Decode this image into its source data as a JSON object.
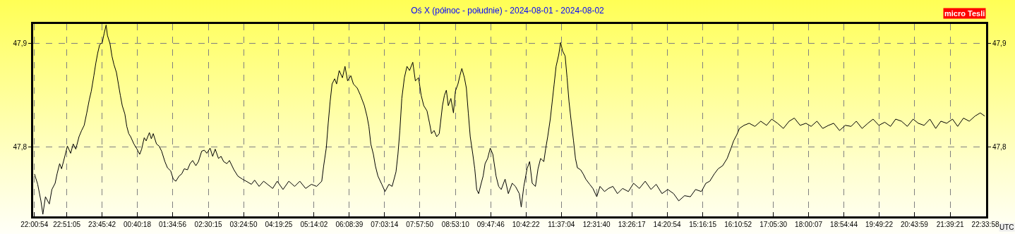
{
  "chart_data": {
    "type": "line",
    "title": "Oś X (północ - południe) - 2024-08-01 - 2024-08-02",
    "xlabel": "UTC",
    "y2label": "micro Tesli",
    "color": "#000000",
    "grid": true,
    "legend": false,
    "marker": "none",
    "line_style": "solid",
    "xlim": [
      "2024-08-01T21:59",
      "2024-08-02T22:35"
    ],
    "ylim": [
      47.733,
      47.919
    ],
    "y2lim": [
      47.733,
      47.919
    ],
    "xticks": [
      {
        "value": "2024-08-01T22:00:54",
        "label": "22:00:54"
      },
      {
        "value": "2024-08-01T22:51:05",
        "label": "22:51:05"
      },
      {
        "value": "2024-08-01T23:45:42",
        "label": "23:45:42"
      },
      {
        "value": "2024-08-02T00:40:18",
        "label": "00:40:18"
      },
      {
        "value": "2024-08-02T01:34:56",
        "label": "01:34:56"
      },
      {
        "value": "2024-08-02T02:30:15",
        "label": "02:30:15"
      },
      {
        "value": "2024-08-02T03:24:50",
        "label": "03:24:50"
      },
      {
        "value": "2024-08-02T04:19:25",
        "label": "04:19:25"
      },
      {
        "value": "2024-08-02T05:14:02",
        "label": "05:14:02"
      },
      {
        "value": "2024-08-02T06:08:39",
        "label": "06:08:39"
      },
      {
        "value": "2024-08-02T07:03:14",
        "label": "07:03:14"
      },
      {
        "value": "2024-08-02T07:57:50",
        "label": "07:57:50"
      },
      {
        "value": "2024-08-02T08:53:10",
        "label": "08:53:10"
      },
      {
        "value": "2024-08-02T09:47:46",
        "label": "09:47:46"
      },
      {
        "value": "2024-08-02T10:42:22",
        "label": "10:42:22"
      },
      {
        "value": "2024-08-02T11:37:04",
        "label": "11:37:04"
      },
      {
        "value": "2024-08-02T12:31:40",
        "label": "12:31:40"
      },
      {
        "value": "2024-08-02T13:26:17",
        "label": "13:26:17"
      },
      {
        "value": "2024-08-02T14:20:54",
        "label": "14:20:54"
      },
      {
        "value": "2024-08-02T15:16:15",
        "label": "15:16:15"
      },
      {
        "value": "2024-08-02T16:10:52",
        "label": "16:10:52"
      },
      {
        "value": "2024-08-02T17:05:30",
        "label": "17:05:30"
      },
      {
        "value": "2024-08-02T18:00:07",
        "label": "18:00:07"
      },
      {
        "value": "2024-08-02T18:54:44",
        "label": "18:54:44"
      },
      {
        "value": "2024-08-02T19:49:22",
        "label": "19:49:22"
      },
      {
        "value": "2024-08-02T20:43:59",
        "label": "20:43:59"
      },
      {
        "value": "2024-08-02T21:39:21",
        "label": "21:39:21"
      },
      {
        "value": "2024-08-02T22:33:58",
        "label": "22:33:58"
      }
    ],
    "yticks": [
      {
        "value": 47.8,
        "label": "47,8"
      },
      {
        "value": 47.9,
        "label": "47,9"
      }
    ],
    "y2ticks": [
      {
        "value": 47.8,
        "label": "47,8"
      },
      {
        "value": 47.9,
        "label": "47,9"
      }
    ],
    "x": [
      "2024-08-01T22:01",
      "2024-08-01T22:06",
      "2024-08-01T22:11",
      "2024-08-01T22:14",
      "2024-08-01T22:18",
      "2024-08-01T22:24",
      "2024-08-01T22:28",
      "2024-08-01T22:33",
      "2024-08-01T22:36",
      "2024-08-01T22:40",
      "2024-08-01T22:43",
      "2024-08-01T22:48",
      "2024-08-01T22:52",
      "2024-08-01T22:57",
      "2024-08-01T23:01",
      "2024-08-01T23:05",
      "2024-08-01T23:10",
      "2024-08-01T23:14",
      "2024-08-01T23:18",
      "2024-08-01T23:22",
      "2024-08-01T23:26",
      "2024-08-01T23:29",
      "2024-08-01T23:33",
      "2024-08-01T23:36",
      "2024-08-01T23:39",
      "2024-08-01T23:42",
      "2024-08-01T23:46",
      "2024-08-01T23:49",
      "2024-08-01T23:52",
      "2024-08-01T23:54",
      "2024-08-01T23:58",
      "2024-08-02T00:01",
      "2024-08-02T00:04",
      "2024-08-02T00:08",
      "2024-08-02T00:11",
      "2024-08-02T00:14",
      "2024-08-02T00:17",
      "2024-08-02T00:21",
      "2024-08-02T00:24",
      "2024-08-02T00:27",
      "2024-08-02T00:30",
      "2024-08-02T00:35",
      "2024-08-02T00:39",
      "2024-08-02T00:44",
      "2024-08-02T00:47",
      "2024-08-02T00:51",
      "2024-08-02T00:54",
      "2024-08-02T00:59",
      "2024-08-02T01:02",
      "2024-08-02T01:05",
      "2024-08-02T01:10",
      "2024-08-02T01:14",
      "2024-08-02T01:18",
      "2024-08-02T01:23",
      "2024-08-02T01:27",
      "2024-08-02T01:32",
      "2024-08-02T01:36",
      "2024-08-02T01:40",
      "2024-08-02T01:45",
      "2024-08-02T01:49",
      "2024-08-02T01:53",
      "2024-08-02T01:58",
      "2024-08-02T02:02",
      "2024-08-02T02:06",
      "2024-08-02T02:11",
      "2024-08-02T02:15",
      "2024-08-02T02:20",
      "2024-08-02T02:24",
      "2024-08-02T02:28",
      "2024-08-02T02:33",
      "2024-08-02T02:37",
      "2024-08-02T02:41",
      "2024-08-02T02:46",
      "2024-08-02T02:50",
      "2024-08-02T02:54",
      "2024-08-02T02:59",
      "2024-08-02T03:03",
      "2024-08-02T03:10",
      "2024-08-02T03:16",
      "2024-08-02T03:23",
      "2024-08-02T03:29",
      "2024-08-02T03:37",
      "2024-08-02T03:42",
      "2024-08-02T03:49",
      "2024-08-02T03:56",
      "2024-08-02T04:02",
      "2024-08-02T04:10",
      "2024-08-02T04:17",
      "2024-08-02T04:26",
      "2024-08-02T04:35",
      "2024-08-02T04:44",
      "2024-08-02T04:52",
      "2024-08-02T05:01",
      "2024-08-02T05:10",
      "2024-08-02T05:18",
      "2024-08-02T05:26",
      "2024-08-02T05:29",
      "2024-08-02T05:33",
      "2024-08-02T05:36",
      "2024-08-02T05:39",
      "2024-08-02T05:42",
      "2024-08-02T05:46",
      "2024-08-02T05:49",
      "2024-08-02T05:53",
      "2024-08-02T05:58",
      "2024-08-02T06:02",
      "2024-08-02T06:06",
      "2024-08-02T06:11",
      "2024-08-02T06:15",
      "2024-08-02T06:21",
      "2024-08-02T06:26",
      "2024-08-02T06:32",
      "2024-08-02T06:36",
      "2024-08-02T06:39",
      "2024-08-02T06:42",
      "2024-08-02T06:46",
      "2024-08-02T06:49",
      "2024-08-02T06:53",
      "2024-08-02T06:59",
      "2024-08-02T07:04",
      "2024-08-02T07:10",
      "2024-08-02T07:15",
      "2024-08-02T07:21",
      "2024-08-02T07:24",
      "2024-08-02T07:27",
      "2024-08-02T07:30",
      "2024-08-02T07:34",
      "2024-08-02T07:38",
      "2024-08-02T07:42",
      "2024-08-02T07:47",
      "2024-08-02T07:51",
      "2024-08-02T07:56",
      "2024-08-02T08:00",
      "2024-08-02T08:04",
      "2024-08-02T08:09",
      "2024-08-02T08:13",
      "2024-08-02T08:16",
      "2024-08-02T08:20",
      "2024-08-02T08:24",
      "2024-08-02T08:28",
      "2024-08-02T08:33",
      "2024-08-02T08:36",
      "2024-08-02T08:39",
      "2024-08-02T08:42",
      "2024-08-02T08:46",
      "2024-08-02T08:50",
      "2024-08-02T08:53",
      "2024-08-02T08:57",
      "2024-08-02T09:00",
      "2024-08-02T09:03",
      "2024-08-02T09:07",
      "2024-08-02T09:10",
      "2024-08-02T09:13",
      "2024-08-02T09:16",
      "2024-08-02T09:20",
      "2024-08-02T09:23",
      "2024-08-02T09:26",
      "2024-08-02T09:29",
      "2024-08-02T09:33",
      "2024-08-02T09:36",
      "2024-08-02T09:39",
      "2024-08-02T09:43",
      "2024-08-02T09:47",
      "2024-08-02T09:51",
      "2024-08-02T09:56",
      "2024-08-02T10:00",
      "2024-08-02T10:04",
      "2024-08-02T10:10",
      "2024-08-02T10:15",
      "2024-08-02T10:21",
      "2024-08-02T10:26",
      "2024-08-02T10:32",
      "2024-08-02T10:35",
      "2024-08-02T10:39",
      "2024-08-02T10:44",
      "2024-08-02T10:48",
      "2024-08-02T10:52",
      "2024-08-02T10:57",
      "2024-08-02T11:01",
      "2024-08-02T11:05",
      "2024-08-02T11:10",
      "2024-08-02T11:13",
      "2024-08-02T11:16",
      "2024-08-02T11:20",
      "2024-08-02T11:23",
      "2024-08-02T11:26",
      "2024-08-02T11:29",
      "2024-08-02T11:33",
      "2024-08-02T11:36",
      "2024-08-02T11:39",
      "2024-08-02T11:43",
      "2024-08-02T11:46",
      "2024-08-02T11:49",
      "2024-08-02T11:52",
      "2024-08-02T11:56",
      "2024-08-02T11:59",
      "2024-08-02T12:02",
      "2024-08-02T12:07",
      "2024-08-02T12:11",
      "2024-08-02T12:15",
      "2024-08-02T12:21",
      "2024-08-02T12:26",
      "2024-08-02T12:32",
      "2024-08-02T12:37",
      "2024-08-02T12:44",
      "2024-08-02T12:50",
      "2024-08-02T12:57",
      "2024-08-02T13:04",
      "2024-08-02T13:12",
      "2024-08-02T13:21",
      "2024-08-02T13:29",
      "2024-08-02T13:38",
      "2024-08-02T13:47",
      "2024-08-02T13:56",
      "2024-08-02T14:04",
      "2024-08-02T14:13",
      "2024-08-02T14:22",
      "2024-08-02T14:31",
      "2024-08-02T14:39",
      "2024-08-02T14:48",
      "2024-08-02T14:57",
      "2024-08-02T15:05",
      "2024-08-02T15:14",
      "2024-08-02T15:21",
      "2024-08-02T15:27",
      "2024-08-02T15:34",
      "2024-08-02T15:40",
      "2024-08-02T15:47",
      "2024-08-02T15:54",
      "2024-08-02T16:00",
      "2024-08-02T16:04",
      "2024-08-02T16:09",
      "2024-08-02T16:13",
      "2024-08-02T16:20",
      "2024-08-02T16:28",
      "2024-08-02T16:37",
      "2024-08-02T16:46",
      "2024-08-02T16:55",
      "2024-08-02T17:03",
      "2024-08-02T17:12",
      "2024-08-02T17:21",
      "2024-08-02T17:30",
      "2024-08-02T17:38",
      "2024-08-02T17:47",
      "2024-08-02T17:56",
      "2024-08-02T18:04",
      "2024-08-02T18:13",
      "2024-08-02T18:22",
      "2024-08-02T18:31",
      "2024-08-02T18:39",
      "2024-08-02T18:48",
      "2024-08-02T18:57",
      "2024-08-02T19:06",
      "2024-08-02T19:14",
      "2024-08-02T19:23",
      "2024-08-02T19:32",
      "2024-08-02T19:40",
      "2024-08-02T19:49",
      "2024-08-02T19:58",
      "2024-08-02T20:07",
      "2024-08-02T20:15",
      "2024-08-02T20:24",
      "2024-08-02T20:33",
      "2024-08-02T20:42",
      "2024-08-02T20:50",
      "2024-08-02T20:59",
      "2024-08-02T21:08",
      "2024-08-02T21:17",
      "2024-08-02T21:25",
      "2024-08-02T21:34",
      "2024-08-02T21:43",
      "2024-08-02T21:51",
      "2024-08-02T22:00",
      "2024-08-02T22:09",
      "2024-08-02T22:18",
      "2024-08-02T22:26",
      "2024-08-02T22:33"
    ],
    "values": [
      47.774,
      47.764,
      47.748,
      47.735,
      47.752,
      47.745,
      47.759,
      47.765,
      47.774,
      47.784,
      47.779,
      47.791,
      47.801,
      47.794,
      47.803,
      47.798,
      47.81,
      47.816,
      47.821,
      47.833,
      47.846,
      47.854,
      47.869,
      47.881,
      47.891,
      47.899,
      47.901,
      47.91,
      47.918,
      47.908,
      47.9,
      47.888,
      47.88,
      47.872,
      47.861,
      47.85,
      47.84,
      47.832,
      47.82,
      47.813,
      47.81,
      47.803,
      47.799,
      47.793,
      47.798,
      47.809,
      47.806,
      47.814,
      47.808,
      47.813,
      47.803,
      47.801,
      47.796,
      47.786,
      47.78,
      47.777,
      47.769,
      47.767,
      47.772,
      47.774,
      47.779,
      47.778,
      47.784,
      47.787,
      47.782,
      47.786,
      47.796,
      47.797,
      47.794,
      47.799,
      47.791,
      47.798,
      47.789,
      47.791,
      47.786,
      47.784,
      47.787,
      47.778,
      47.772,
      47.769,
      47.767,
      47.764,
      47.768,
      47.762,
      47.767,
      47.764,
      47.76,
      47.767,
      47.759,
      47.767,
      47.762,
      47.767,
      47.76,
      47.764,
      47.762,
      47.767,
      47.782,
      47.799,
      47.823,
      47.844,
      47.861,
      47.866,
      47.861,
      47.874,
      47.867,
      47.878,
      47.864,
      47.869,
      47.861,
      47.857,
      47.85,
      47.84,
      47.83,
      47.82,
      47.803,
      47.793,
      47.782,
      47.772,
      47.764,
      47.757,
      47.764,
      47.762,
      47.776,
      47.793,
      47.816,
      47.847,
      47.867,
      47.878,
      47.874,
      47.882,
      47.864,
      47.867,
      47.85,
      47.84,
      47.835,
      47.823,
      47.813,
      47.816,
      47.81,
      47.813,
      47.84,
      47.85,
      47.855,
      47.84,
      47.847,
      47.833,
      47.854,
      47.861,
      47.869,
      47.876,
      47.867,
      47.857,
      47.833,
      47.81,
      47.793,
      47.779,
      47.759,
      47.755,
      47.765,
      47.772,
      47.784,
      47.789,
      47.799,
      47.793,
      47.772,
      47.762,
      47.759,
      47.769,
      47.755,
      47.765,
      47.762,
      47.755,
      47.742,
      47.762,
      47.779,
      47.786,
      47.765,
      47.762,
      47.779,
      47.789,
      47.786,
      47.799,
      47.81,
      47.827,
      47.844,
      47.861,
      47.878,
      47.889,
      47.901,
      47.893,
      47.888,
      47.867,
      47.844,
      47.827,
      47.806,
      47.789,
      47.78,
      47.778,
      47.774,
      47.769,
      47.764,
      47.76,
      47.752,
      47.762,
      47.757,
      47.76,
      47.762,
      47.755,
      47.76,
      47.757,
      47.765,
      47.76,
      47.767,
      47.759,
      47.764,
      47.755,
      47.759,
      47.755,
      47.748,
      47.753,
      47.752,
      47.759,
      47.757,
      47.765,
      47.767,
      47.774,
      47.779,
      47.782,
      47.789,
      47.799,
      47.806,
      47.812,
      47.818,
      47.821,
      47.823,
      47.82,
      47.825,
      47.821,
      47.827,
      47.823,
      47.818,
      47.825,
      47.828,
      47.821,
      47.823,
      47.82,
      47.825,
      47.818,
      47.821,
      47.823,
      47.816,
      47.821,
      47.82,
      47.825,
      47.818,
      47.823,
      47.827,
      47.821,
      47.824,
      47.82,
      47.827,
      47.825,
      47.82,
      47.827,
      47.823,
      47.821,
      47.827,
      47.818,
      47.825,
      47.823,
      47.827,
      47.82,
      47.828,
      47.825,
      47.83,
      47.833,
      47.83
    ]
  }
}
